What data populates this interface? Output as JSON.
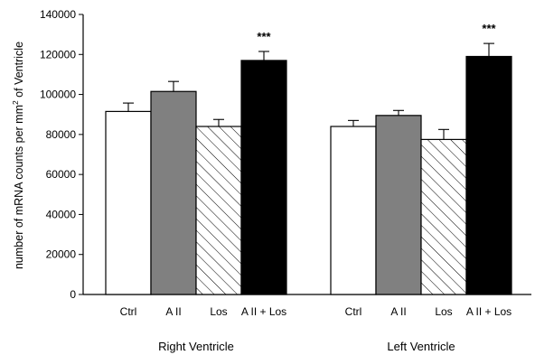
{
  "chart_data": {
    "type": "bar",
    "ylabel": "number of mRNA counts per mm² of Ventricle",
    "ylabel_parts": [
      "number of mRNA counts per mm",
      "2",
      " of Ventricle"
    ],
    "ylim": [
      0,
      140000
    ],
    "yticks": [
      "0",
      "20000",
      "40000",
      "60000",
      "80000",
      "100000",
      "120000",
      "140000"
    ],
    "grid": false,
    "groups": [
      {
        "name": "Right Ventricle",
        "bars": [
          {
            "category": "Ctrl",
            "value": 91500,
            "error": 4200,
            "fill": "white",
            "sig": ""
          },
          {
            "category": "A II",
            "value": 101500,
            "error": 5000,
            "fill": "gray",
            "sig": ""
          },
          {
            "category": "Los",
            "value": 84000,
            "error": 3500,
            "fill": "hatch",
            "sig": ""
          },
          {
            "category": "A II + Los",
            "value": 117000,
            "error": 4500,
            "fill": "black",
            "sig": "***"
          }
        ]
      },
      {
        "name": "Left Ventricle",
        "bars": [
          {
            "category": "Ctrl",
            "value": 84000,
            "error": 3000,
            "fill": "white",
            "sig": ""
          },
          {
            "category": "A II",
            "value": 89500,
            "error": 2500,
            "fill": "gray",
            "sig": ""
          },
          {
            "category": "Los",
            "value": 77500,
            "error": 5000,
            "fill": "hatch",
            "sig": ""
          },
          {
            "category": "A II + Los",
            "value": 119000,
            "error": 6500,
            "fill": "black",
            "sig": "***"
          }
        ]
      }
    ],
    "colors": {
      "white": "#ffffff",
      "gray": "#808080",
      "black": "#000000",
      "hatch_line": "#000000"
    }
  }
}
